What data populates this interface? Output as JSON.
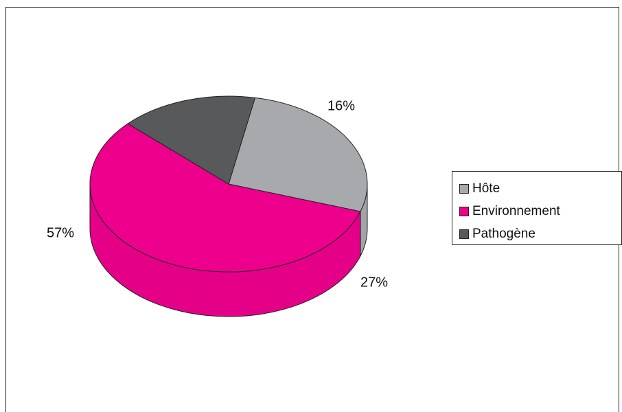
{
  "chart_data": {
    "type": "pie",
    "style": "3d",
    "title": "",
    "slices": [
      {
        "name": "Hôte",
        "value": 27,
        "label": "27%",
        "color": "#a7a9ac"
      },
      {
        "name": "Environnement",
        "value": 57,
        "label": "57%",
        "color": "#ec008c"
      },
      {
        "name": "Pathogène",
        "value": 16,
        "label": "16%",
        "color": "#58595b"
      }
    ],
    "legend_position": "right"
  }
}
